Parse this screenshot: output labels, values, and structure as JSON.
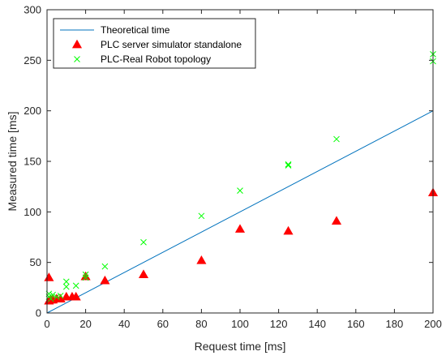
{
  "chart_data": {
    "type": "scatter",
    "title": "",
    "xlabel": "Request time [ms]",
    "ylabel": "Measured time [ms]",
    "xlim": [
      0,
      200
    ],
    "ylim": [
      0,
      300
    ],
    "xticks": [
      0,
      20,
      40,
      60,
      80,
      100,
      120,
      140,
      160,
      180,
      200
    ],
    "yticks": [
      0,
      50,
      100,
      150,
      200,
      250,
      300
    ],
    "xtick_labels": [
      "0",
      "20",
      "40",
      "60",
      "80",
      "100",
      "120",
      "140",
      "160",
      "180",
      "200"
    ],
    "ytick_labels": [
      "0",
      "50",
      "100",
      "150",
      "200",
      "250",
      "300"
    ],
    "grid": false,
    "legend_position": "top-left",
    "series": [
      {
        "name": "Theoretical time",
        "kind": "line",
        "color": "#0072bd",
        "points": [
          [
            0,
            0
          ],
          [
            200,
            200
          ]
        ]
      },
      {
        "name": "PLC server simulator standalone",
        "kind": "marker-triangle",
        "color": "#ff0000",
        "points": [
          [
            1,
            35
          ],
          [
            1,
            12
          ],
          [
            2,
            13
          ],
          [
            3,
            13
          ],
          [
            5,
            14
          ],
          [
            7,
            14
          ],
          [
            10,
            16
          ],
          [
            13,
            16
          ],
          [
            15,
            16
          ],
          [
            20,
            36
          ],
          [
            30,
            32
          ],
          [
            50,
            38
          ],
          [
            80,
            52
          ],
          [
            100,
            83
          ],
          [
            125,
            81
          ],
          [
            150,
            91
          ],
          [
            200,
            119
          ]
        ]
      },
      {
        "name": "PLC-Real Robot topology",
        "kind": "marker-x",
        "color": "#00ff00",
        "points": [
          [
            1,
            19
          ],
          [
            1,
            16
          ],
          [
            2,
            14
          ],
          [
            3,
            18
          ],
          [
            5,
            16
          ],
          [
            7,
            17
          ],
          [
            10,
            31
          ],
          [
            10,
            26
          ],
          [
            15,
            27
          ],
          [
            20,
            38
          ],
          [
            20,
            35
          ],
          [
            30,
            46
          ],
          [
            50,
            70
          ],
          [
            80,
            96
          ],
          [
            100,
            121
          ],
          [
            125,
            147
          ],
          [
            125,
            146
          ],
          [
            150,
            172
          ],
          [
            200,
            256
          ],
          [
            200,
            249
          ]
        ]
      }
    ]
  }
}
